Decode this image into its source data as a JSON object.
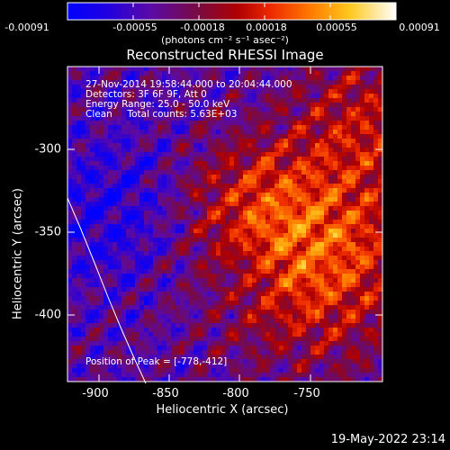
{
  "colorbar": {
    "ticks": [
      "-0.00091",
      "-0.00055",
      "-0.00018",
      "0.00018",
      "0.00055",
      "0.00091"
    ],
    "unit": "(photons cm⁻² s⁻¹ asec⁻²)"
  },
  "title": "Reconstructed RHESSI Image",
  "info": {
    "time_range": "27-Nov-2014 19:58:44.000 to 20:04:44.000",
    "detectors": "Detectors: 3F 6F 9F, Att 0",
    "energy_range": "Energy Range: 25.0 - 50.0 keV",
    "clean_counts": "Clean     Total counts: 5.63E+03"
  },
  "peak_text": "Position of Peak = [-778,-412]",
  "x_axis": {
    "label": "Heliocentric X (arcsec)",
    "ticks": [
      "-900",
      "-850",
      "-800",
      "-750"
    ]
  },
  "y_axis": {
    "label": "Heliocentric Y (arcsec)",
    "ticks": [
      "-300",
      "-350",
      "-400"
    ]
  },
  "timestamp": "19-May-2022 23:14"
}
